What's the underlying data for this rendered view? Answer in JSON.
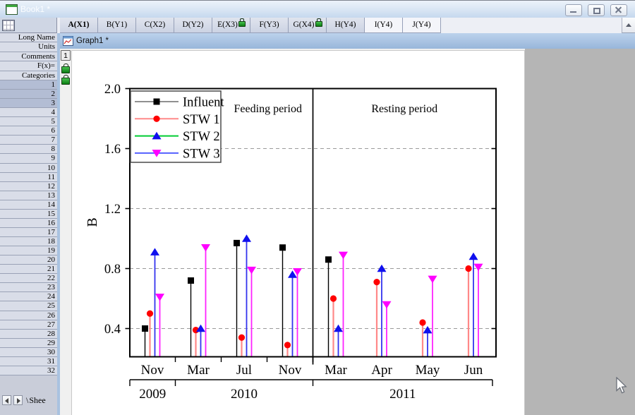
{
  "book_window": {
    "title": "Book1 *"
  },
  "window_controls": {
    "icons": [
      "minimize-icon",
      "restore-icon",
      "close-icon"
    ]
  },
  "worksheet": {
    "corner_icon": "a-z",
    "columns": [
      {
        "label": "A(X1)",
        "selected": true,
        "locked": false,
        "plain": false
      },
      {
        "label": "B(Y1)",
        "selected": false,
        "locked": false,
        "plain": false
      },
      {
        "label": "C(X2)",
        "selected": false,
        "locked": false,
        "plain": false
      },
      {
        "label": "D(Y2)",
        "selected": false,
        "locked": false,
        "plain": false
      },
      {
        "label": "E(X3)",
        "selected": false,
        "locked": true,
        "plain": false
      },
      {
        "label": "F(Y3)",
        "selected": false,
        "locked": false,
        "plain": false
      },
      {
        "label": "G(X4)",
        "selected": false,
        "locked": true,
        "plain": false
      },
      {
        "label": "H(Y4)",
        "selected": false,
        "locked": false,
        "plain": false
      },
      {
        "label": "I(Y4)",
        "selected": false,
        "locked": false,
        "plain": true
      },
      {
        "label": "J(Y4)",
        "selected": false,
        "locked": false,
        "plain": true
      }
    ],
    "header_rows": [
      "Long Name",
      "Units",
      "Comments",
      "F(x)=",
      "Categories"
    ],
    "row_numbers": [
      1,
      2,
      3,
      4,
      5,
      6,
      7,
      8,
      9,
      10,
      11,
      12,
      13,
      14,
      15,
      16,
      17,
      18,
      19,
      20,
      21,
      22,
      23,
      24,
      25,
      26,
      27,
      28,
      29,
      30,
      31,
      32
    ],
    "selected_rows": [
      1,
      2,
      3
    ],
    "sheet_tab": "Shee"
  },
  "graph_window": {
    "title": "Graph1 *",
    "layer_button": "1"
  },
  "chart_data": {
    "type": "scatter",
    "subtype": "vertical-drop-line-stem",
    "title": "",
    "xlabel": "",
    "ylabel": "B",
    "yticks": [
      0.4,
      0.8,
      1.2,
      1.6,
      2.0
    ],
    "ylim": [
      0.21,
      2.0
    ],
    "grid": "horizontal-dashed",
    "legend_position": "top-left",
    "months": [
      "Nov",
      "Mar",
      "Jul",
      "Nov",
      "Mar",
      "Apr",
      "May",
      "Jun"
    ],
    "years": [
      {
        "label": "2009",
        "from_month": 0,
        "to_month": 0
      },
      {
        "label": "2010",
        "from_month": 1,
        "to_month": 3
      },
      {
        "label": "2011",
        "from_month": 4,
        "to_month": 7
      }
    ],
    "period_separator_after_month_index": 4,
    "annotations": [
      {
        "text": "Feeding period"
      },
      {
        "text": "Resting period"
      }
    ],
    "series": [
      {
        "name": "Influent",
        "marker": "square",
        "marker_color": "#000000",
        "legend_line_color": "#909090",
        "stem_color": "#000000",
        "values": [
          0.4,
          0.72,
          0.97,
          0.94,
          0.86,
          null,
          null,
          null
        ]
      },
      {
        "name": "STW 1",
        "marker": "circle",
        "marker_color": "#ff0000",
        "legend_line_color": "#ff8a8a",
        "stem_color": "#ff8888",
        "values": [
          0.5,
          0.39,
          0.34,
          0.29,
          0.6,
          0.71,
          0.44,
          0.8
        ]
      },
      {
        "name": "STW 2",
        "marker": "triangle-up",
        "marker_color": "#1010ee",
        "legend_line_color": "#00cc33",
        "stem_color": "#3333ee",
        "values": [
          0.91,
          0.4,
          1.0,
          0.76,
          0.4,
          0.8,
          0.39,
          0.88
        ]
      },
      {
        "name": "STW 3",
        "marker": "triangle-down",
        "marker_color": "#ff00ff",
        "legend_line_color": "#5560ff",
        "stem_color": "#ff22ff",
        "values": [
          0.61,
          0.94,
          0.79,
          0.78,
          0.89,
          0.56,
          0.73,
          0.81
        ]
      }
    ]
  }
}
